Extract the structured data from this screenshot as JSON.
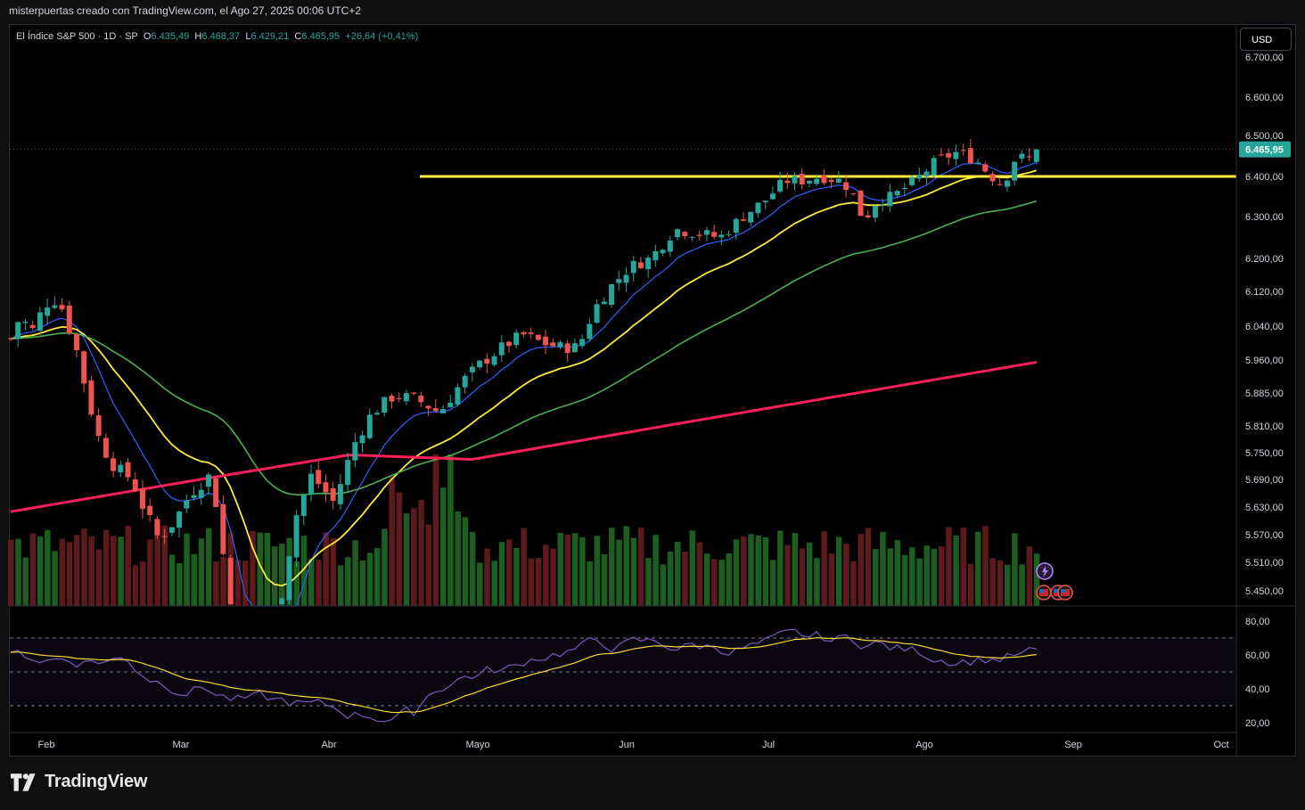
{
  "header": {
    "caption": "misterpuertas creado con TradingView.com, el Ago 27, 2025 00:06 UTC+2"
  },
  "legend": {
    "symbol": "El Índice S&P 500 · 1D · SP",
    "o_label": "O",
    "o_value": "6.435,49",
    "h_label": "H",
    "h_value": "6.468,37",
    "l_label": "L",
    "l_value": "6.429,21",
    "c_label": "C",
    "c_value": "6.465,95",
    "change": "+26,64 (+0,41%)"
  },
  "currency_button": "USD",
  "last_price_label": "6.465,95",
  "brand": {
    "name": "TradingView"
  },
  "colors": {
    "up": "#26a69a",
    "down": "#ef5350",
    "vol_up": "#1b5e20",
    "vol_down": "#5d1a1a",
    "ema_fast": "#2962ff",
    "ema_mid": "#ffeb3b",
    "ema_slow": "#4caf50",
    "ema_long": "#ff1f5a",
    "level_line": "#ffeb3b",
    "rsi": "#7e57c2",
    "rsi_ma": "#fdd835"
  },
  "chart_data": {
    "type": "candlestick",
    "price_ticks": [
      "6.700,00",
      "6.600,00",
      "6.500,00",
      "6.400,00",
      "6.300,00",
      "6.200,00",
      "6.120,00",
      "6.040,00",
      "5.960,00",
      "5.885,00",
      "5.810,00",
      "5.750,00",
      "5.690,00",
      "5.630,00",
      "5.570,00",
      "5.510,00",
      "5.450,00"
    ],
    "price_tick_values": [
      6700,
      6600,
      6500,
      6400,
      6300,
      6200,
      6120,
      6040,
      5960,
      5885,
      5810,
      5750,
      5690,
      5630,
      5570,
      5510,
      5450
    ],
    "rsi_ticks": [
      "80,00",
      "60,00",
      "40,00",
      "20,00"
    ],
    "rsi_tick_values": [
      80,
      60,
      40,
      20
    ],
    "months": [
      "Feb",
      "Mar",
      "Abr",
      "Mayo",
      "Jun",
      "Jul",
      "Ago",
      "Sep",
      "Oct"
    ],
    "month_positions": [
      0,
      1,
      2,
      3,
      4,
      5,
      6,
      7,
      8
    ],
    "last_price": 6465.95,
    "horizontal_level": 6400,
    "rsi_band": [
      70,
      30
    ],
    "rsi_mid": 50
  }
}
